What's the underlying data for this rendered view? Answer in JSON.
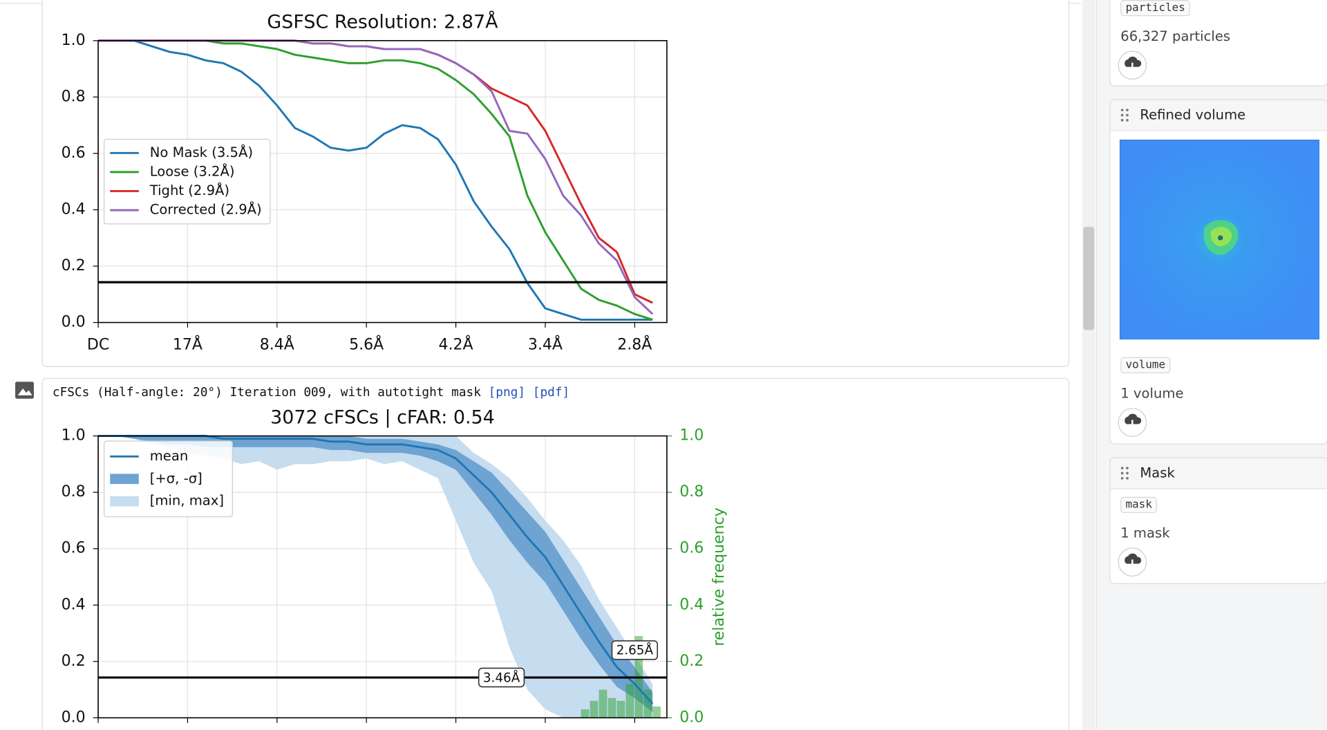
{
  "chart_data": [
    {
      "type": "line",
      "title": "GSFSC Resolution: 2.87Å",
      "x": [
        0,
        0.2,
        0.4,
        0.6,
        0.8,
        1.0,
        1.2,
        1.4,
        1.6,
        1.8,
        2.0,
        2.2,
        2.4,
        2.6,
        2.8,
        3.0,
        3.2,
        3.4,
        3.6,
        3.8,
        4.0,
        4.2,
        4.4,
        4.6,
        4.8,
        5.0,
        5.2,
        5.4,
        5.6,
        5.8,
        6.0,
        6.2
      ],
      "series": [
        {
          "name": "No Mask (3.5Å)",
          "color": "#1f77b4",
          "values": [
            1,
            1,
            1,
            0.98,
            0.96,
            0.95,
            0.93,
            0.92,
            0.89,
            0.84,
            0.77,
            0.69,
            0.66,
            0.62,
            0.61,
            0.62,
            0.67,
            0.7,
            0.69,
            0.65,
            0.56,
            0.43,
            0.34,
            0.26,
            0.14,
            0.05,
            0.03,
            0.01,
            0.01,
            0.01,
            0.01,
            0.01
          ]
        },
        {
          "name": "Loose (3.2Å)",
          "color": "#2ca02c",
          "values": [
            1,
            1,
            1,
            1,
            1,
            1,
            1,
            0.99,
            0.99,
            0.98,
            0.97,
            0.95,
            0.94,
            0.93,
            0.92,
            0.92,
            0.93,
            0.93,
            0.92,
            0.9,
            0.86,
            0.81,
            0.74,
            0.66,
            0.45,
            0.32,
            0.22,
            0.12,
            0.08,
            0.06,
            0.03,
            0.01
          ]
        },
        {
          "name": "Tight (2.9Å)",
          "color": "#d62728",
          "values": [
            1,
            1,
            1,
            1,
            1,
            1,
            1,
            1,
            1,
            1,
            1,
            1,
            0.99,
            0.99,
            0.98,
            0.98,
            0.97,
            0.97,
            0.97,
            0.95,
            0.92,
            0.88,
            0.83,
            0.8,
            0.77,
            0.68,
            0.55,
            0.42,
            0.3,
            0.25,
            0.1,
            0.07
          ]
        },
        {
          "name": "Corrected (2.9Å)",
          "color": "#9467bd",
          "values": [
            1,
            1,
            1,
            1,
            1,
            1,
            1,
            1,
            1,
            1,
            1,
            1,
            0.99,
            0.99,
            0.98,
            0.98,
            0.97,
            0.97,
            0.97,
            0.95,
            0.92,
            0.88,
            0.82,
            0.68,
            0.67,
            0.58,
            0.45,
            0.38,
            0.28,
            0.22,
            0.09,
            0.03
          ]
        }
      ],
      "threshold": 0.143,
      "xlim": [
        0,
        6.36
      ],
      "xticks": [
        {
          "value": 0,
          "label": "DC"
        },
        {
          "value": 1,
          "label": "17Å"
        },
        {
          "value": 2,
          "label": "8.4Å"
        },
        {
          "value": 3,
          "label": "5.6Å"
        },
        {
          "value": 4,
          "label": "4.2Å"
        },
        {
          "value": 5,
          "label": "3.4Å"
        },
        {
          "value": 6,
          "label": "2.8Å"
        }
      ],
      "ylim": [
        0,
        1
      ],
      "yticks": [
        {
          "value": 0,
          "label": "0.0"
        },
        0.2,
        0.4,
        0.6,
        0.8,
        {
          "value": 1,
          "label": "1.0"
        }
      ],
      "grid": true,
      "legend": "center left"
    },
    {
      "type": "line",
      "title": "3072 cFSCs | cFAR: 0.54",
      "x": [
        0,
        0.2,
        0.4,
        0.6,
        0.8,
        1.0,
        1.2,
        1.4,
        1.6,
        1.8,
        2.0,
        2.2,
        2.4,
        2.6,
        2.8,
        3.0,
        3.2,
        3.4,
        3.6,
        3.8,
        4.0,
        4.2,
        4.4,
        4.6,
        4.8,
        5.0,
        5.2,
        5.4,
        5.6,
        5.8,
        6.0,
        6.2
      ],
      "series": [
        {
          "name": "mean",
          "color": "#1f77b4",
          "values": [
            1,
            1,
            1,
            1,
            1,
            1,
            1,
            0.99,
            0.99,
            0.99,
            0.99,
            0.99,
            0.99,
            0.98,
            0.98,
            0.97,
            0.97,
            0.97,
            0.96,
            0.95,
            0.92,
            0.86,
            0.8,
            0.72,
            0.64,
            0.57,
            0.47,
            0.37,
            0.27,
            0.18,
            0.12,
            0.05
          ]
        },
        {
          "name": "[+σ, -σ]",
          "color": "#6fa4d2",
          "upper": [
            1,
            1,
            1,
            1,
            1,
            1,
            1,
            1,
            1,
            1,
            1,
            1,
            1,
            1,
            1,
            0.99,
            0.99,
            0.99,
            0.98,
            0.97,
            0.95,
            0.91,
            0.87,
            0.8,
            0.73,
            0.66,
            0.56,
            0.46,
            0.36,
            0.26,
            0.18,
            0.09
          ],
          "lower": [
            1,
            1,
            0.99,
            0.98,
            0.97,
            0.97,
            0.96,
            0.96,
            0.96,
            0.96,
            0.96,
            0.96,
            0.96,
            0.95,
            0.95,
            0.94,
            0.94,
            0.94,
            0.93,
            0.91,
            0.88,
            0.8,
            0.72,
            0.63,
            0.55,
            0.48,
            0.38,
            0.28,
            0.19,
            0.11,
            0.07,
            0.02
          ]
        },
        {
          "name": "[min, max]",
          "color": "#c6dcef",
          "upper": [
            1,
            1,
            1,
            1,
            1,
            1,
            1,
            1,
            1,
            1,
            1,
            1,
            1,
            1,
            1,
            1,
            1,
            1,
            1,
            1,
            1,
            0.94,
            0.9,
            0.85,
            0.78,
            0.7,
            0.63,
            0.54,
            0.42,
            0.32,
            0.22,
            0.12
          ],
          "lower": [
            1,
            1,
            0.99,
            0.97,
            0.96,
            0.94,
            0.93,
            0.92,
            0.9,
            0.91,
            0.88,
            0.9,
            0.9,
            0.91,
            0.91,
            0.92,
            0.9,
            0.91,
            0.88,
            0.85,
            0.7,
            0.55,
            0.45,
            0.25,
            0.1,
            0.03,
            0,
            0,
            0,
            0,
            0,
            0
          ]
        }
      ],
      "histogram": {
        "axis": "y2",
        "color": "#2ca02c",
        "bins": [
          5.4,
          5.5,
          5.6,
          5.7,
          5.8,
          5.9,
          6.0,
          6.1,
          6.2,
          6.3
        ],
        "counts": [
          0.03,
          0.06,
          0.1,
          0.07,
          0.06,
          0.12,
          0.29,
          0.1,
          0.04
        ]
      },
      "threshold": 0.143,
      "annotations": [
        {
          "text": "3.46Å",
          "x": 4.51,
          "y": 0.143
        },
        {
          "text": "2.65Å",
          "x": 6.0,
          "y": 0.24
        }
      ],
      "y2label": "relative frequency",
      "y2color": "#2ca02c",
      "xlim": [
        0,
        6.36
      ],
      "xticks": [
        0,
        1,
        2,
        3,
        4,
        5,
        6
      ],
      "ylim": [
        0,
        1
      ],
      "yticks": [
        {
          "value": 0,
          "label": "0.0"
        },
        0.2,
        0.4,
        0.6,
        0.8,
        {
          "value": 1,
          "label": "1.0"
        }
      ],
      "y2lim": [
        0,
        1
      ],
      "y2ticks": [
        {
          "value": 0,
          "label": "0.0"
        },
        0.2,
        0.4,
        0.6,
        0.8,
        {
          "value": 1,
          "label": "1.0"
        }
      ],
      "grid": true,
      "legend": "upper left"
    }
  ],
  "plot_header": {
    "caption": "cFSCs (Half-angle: 20°) Iteration 009, with autotight mask",
    "links": [
      "[png]",
      "[pdf]"
    ]
  },
  "sidebar": {
    "outputs": [
      {
        "tag": "particles",
        "count": "66,327 particles"
      },
      {
        "title": "Refined volume",
        "tag": "volume",
        "count": "1 volume"
      },
      {
        "title": "Mask",
        "tag": "mask",
        "count": "1 mask"
      }
    ]
  }
}
